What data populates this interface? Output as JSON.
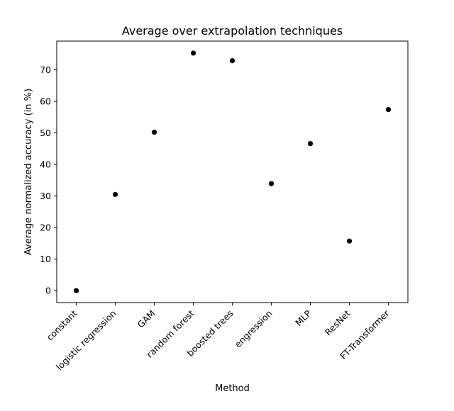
{
  "chart_data": {
    "type": "scatter",
    "title": "Average over extrapolation techniques",
    "xlabel": "Method",
    "ylabel": "Average normalized accuracy (in %)",
    "categories": [
      "constant",
      "logistic regression",
      "GAM",
      "random forest",
      "boosted trees",
      "engression",
      "MLP",
      "ResNet",
      "FT-Transformer"
    ],
    "values": [
      0,
      30.5,
      50.2,
      75.3,
      72.9,
      33.9,
      46.6,
      15.7,
      57.4
    ],
    "ylim": [
      -3.8,
      79.1
    ],
    "yticks": [
      0,
      10,
      20,
      30,
      40,
      50,
      60,
      70
    ],
    "grid": false,
    "marker_color": "#000000"
  }
}
